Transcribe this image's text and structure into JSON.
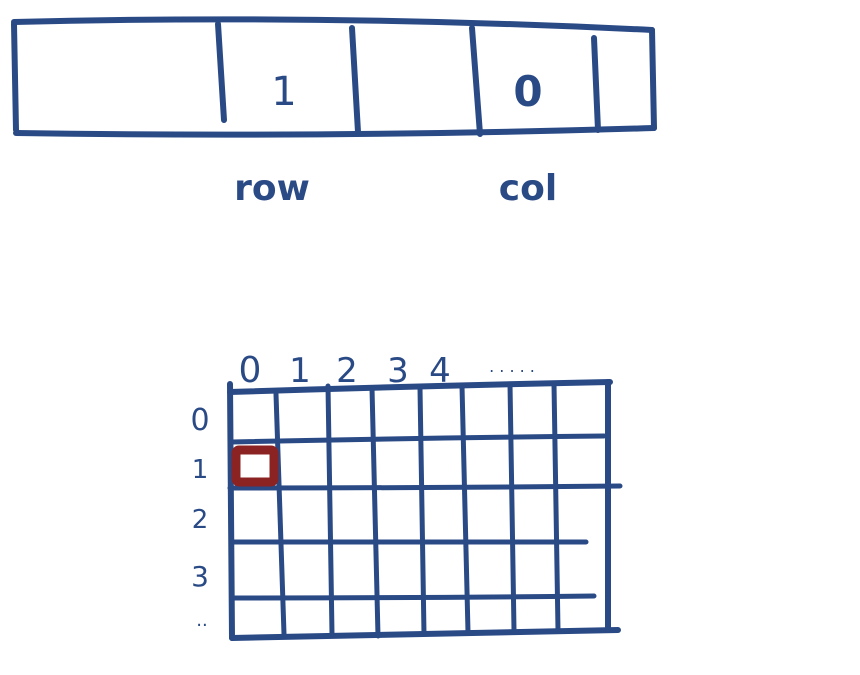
{
  "memory_strip": {
    "cells": [
      "",
      "1",
      "",
      "0",
      ""
    ],
    "labels": {
      "row": "row",
      "col": "col"
    }
  },
  "grid": {
    "column_headers": [
      "0",
      "1",
      "2",
      "3",
      "4",
      ". . . . ."
    ],
    "row_headers": [
      "0",
      "1",
      "2",
      "3",
      ".."
    ],
    "highlighted_cell": {
      "row": 1,
      "col": 0
    },
    "highlight_color": "#8b2323",
    "ink_color": "#2a4a86"
  }
}
